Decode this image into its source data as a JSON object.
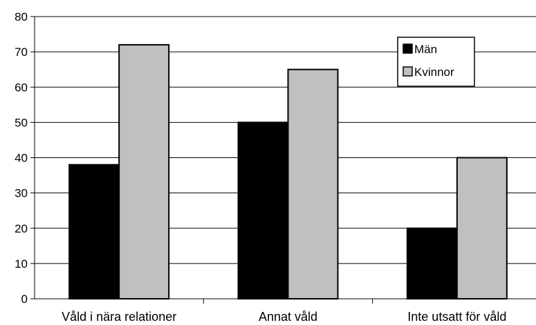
{
  "chart_data": {
    "type": "bar",
    "categories": [
      "Våld i nära relationer",
      "Annat våld",
      "Inte utsatt för våld"
    ],
    "series": [
      {
        "name": "Män",
        "values": [
          38,
          50,
          20
        ],
        "color": "#000000"
      },
      {
        "name": "Kvinnor",
        "values": [
          72,
          65,
          40
        ],
        "color": "#c0c0c0"
      }
    ],
    "title": "",
    "xlabel": "",
    "ylabel": "",
    "ylim": [
      0,
      80
    ],
    "yticks": [
      0,
      10,
      20,
      30,
      40,
      50,
      60,
      70,
      80
    ],
    "grid": true,
    "legend_position": "top-right"
  }
}
